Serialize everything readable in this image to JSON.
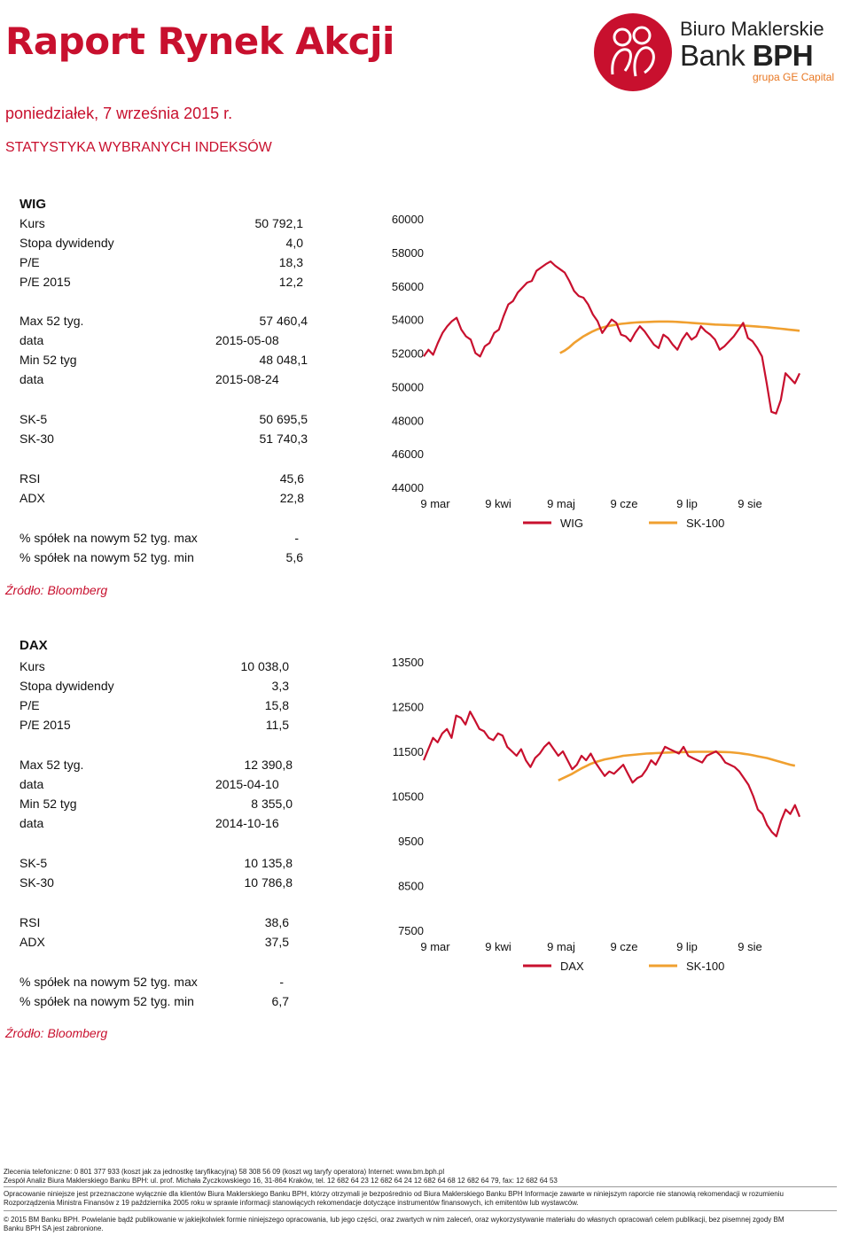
{
  "header": {
    "title": "Raport Rynek Akcji",
    "date": "poniedziałek, 7 września 2015 r.",
    "section": "STATYSTYKA WYBRANYCH INDEKSÓW"
  },
  "logo": {
    "line1": "Biuro Maklerskie",
    "line2a": "Bank ",
    "line2b": "BPH",
    "line3": "grupa GE Capital"
  },
  "colors": {
    "accent": "#c8102e",
    "series_index": "#c8102e",
    "series_sk100": "#f0a030"
  },
  "wig": {
    "name": "WIG",
    "kurs_label": "Kurs",
    "kurs": "50 792,1",
    "dyw_label": "Stopa dywidendy",
    "dyw": "4,0",
    "pe_label": "P/E",
    "pe": "18,3",
    "pe2015_label": "P/E 2015",
    "pe2015": "12,2",
    "max_label": "Max 52 tyg.",
    "max": "57 460,4",
    "max_date_label": "data",
    "max_date": "2015-05-08",
    "min_label": "Min 52 tyg",
    "min": "48 048,1",
    "min_date_label": "data",
    "min_date": "2015-08-24",
    "sk5_label": "SK-5",
    "sk5": "50 695,5",
    "sk30_label": "SK-30",
    "sk30": "51 740,3",
    "rsi_label": "RSI",
    "rsi": "45,6",
    "adx_label": "ADX",
    "adx": "22,8",
    "pmax_label": "% spółek na nowym 52 tyg. max",
    "pmax": "-",
    "pmin_label": "% spółek na nowym 52 tyg. min",
    "pmin": "5,6",
    "source": "Źródło: Bloomberg"
  },
  "dax": {
    "name": "DAX",
    "kurs_label": "Kurs",
    "kurs": "10 038,0",
    "dyw_label": "Stopa dywidendy",
    "dyw": "3,3",
    "pe_label": "P/E",
    "pe": "15,8",
    "pe2015_label": "P/E 2015",
    "pe2015": "11,5",
    "max_label": "Max 52 tyg.",
    "max": "12 390,8",
    "max_date_label": "data",
    "max_date": "2015-04-10",
    "min_label": "Min 52 tyg",
    "min": "8 355,0",
    "min_date_label": "data",
    "min_date": "2014-10-16",
    "sk5_label": "SK-5",
    "sk5": "10 135,8",
    "sk30_label": "SK-30",
    "sk30": "10 786,8",
    "rsi_label": "RSI",
    "rsi": "38,6",
    "adx_label": "ADX",
    "adx": "37,5",
    "pmax_label": "% spółek na nowym 52 tyg. max",
    "pmax": "-",
    "pmin_label": "% spółek na nowym 52 tyg. min",
    "pmin": "6,7",
    "source": "Źródło: Bloomberg"
  },
  "chart_data": [
    {
      "type": "line",
      "x_ticks": [
        "9 mar",
        "9 kwi",
        "9 maj",
        "9 cze",
        "9 lip",
        "9 sie"
      ],
      "y_ticks": [
        "60000",
        "58000",
        "56000",
        "54000",
        "52000",
        "50000",
        "48000",
        "46000",
        "44000"
      ],
      "ylim": [
        44000,
        60000
      ],
      "legend": "bottom",
      "series": [
        {
          "name": "WIG",
          "color": "#c8102e",
          "values": [
            51800,
            52200,
            51900,
            52600,
            53200,
            53600,
            53900,
            54100,
            53400,
            53000,
            52800,
            52000,
            51800,
            52400,
            52600,
            53200,
            53400,
            54200,
            54900,
            55100,
            55600,
            55900,
            56200,
            56300,
            56900,
            57100,
            57300,
            57460,
            57200,
            57000,
            56800,
            56300,
            55700,
            55400,
            55300,
            54900,
            54300,
            53900,
            53200,
            53600,
            54000,
            53800,
            53100,
            53000,
            52700,
            53200,
            53600,
            53300,
            52900,
            52500,
            52300,
            53100,
            52900,
            52500,
            52200,
            52800,
            53200,
            52800,
            53000,
            53600,
            53300,
            53100,
            52800,
            52200,
            52400,
            52700,
            53000,
            53400,
            53800,
            52900,
            52700,
            52300,
            51800,
            50200,
            48500,
            48400,
            49200,
            50800,
            50500,
            50200,
            50790
          ]
        },
        {
          "name": "SK-100",
          "color": "#f0a030",
          "values": [
            null,
            null,
            null,
            null,
            null,
            null,
            null,
            null,
            null,
            null,
            null,
            null,
            null,
            null,
            null,
            null,
            null,
            null,
            null,
            null,
            null,
            null,
            null,
            null,
            null,
            null,
            null,
            null,
            null,
            52000,
            52150,
            52350,
            52600,
            52800,
            53000,
            53150,
            53300,
            53420,
            53520,
            53600,
            53650,
            53700,
            53740,
            53770,
            53800,
            53820,
            53840,
            53850,
            53860,
            53870,
            53880,
            53880,
            53880,
            53870,
            53860,
            53840,
            53820,
            53800,
            53780,
            53760,
            53740,
            53720,
            53700,
            53690,
            53680,
            53670,
            53660,
            53650,
            53640,
            53620,
            53600,
            53580,
            53560,
            53540,
            53510,
            53480,
            53450,
            53420,
            53390,
            53360,
            53330
          ]
        }
      ]
    },
    {
      "type": "line",
      "x_ticks": [
        "9 mar",
        "9 kwi",
        "9 maj",
        "9 cze",
        "9 lip",
        "9 sie"
      ],
      "y_ticks": [
        "13500",
        "12500",
        "11500",
        "10500",
        "9500",
        "8500",
        "7500"
      ],
      "ylim": [
        7500,
        13500
      ],
      "legend": "bottom",
      "series": [
        {
          "name": "DAX",
          "color": "#c8102e",
          "values": [
            11300,
            11550,
            11800,
            11700,
            11900,
            12000,
            11800,
            12300,
            12250,
            12100,
            12390,
            12200,
            12000,
            11950,
            11800,
            11750,
            11900,
            11850,
            11600,
            11500,
            11400,
            11550,
            11300,
            11150,
            11350,
            11450,
            11600,
            11700,
            11550,
            11400,
            11500,
            11300,
            11100,
            11200,
            11400,
            11300,
            11450,
            11250,
            11100,
            10950,
            11050,
            11000,
            11100,
            11200,
            11000,
            10800,
            10900,
            10950,
            11100,
            11300,
            11200,
            11400,
            11600,
            11550,
            11500,
            11450,
            11600,
            11400,
            11350,
            11300,
            11250,
            11400,
            11450,
            11500,
            11400,
            11250,
            11200,
            11150,
            11050,
            10900,
            10750,
            10500,
            10200,
            10100,
            9850,
            9700,
            9600,
            9950,
            10200,
            10100,
            10300,
            10038
          ]
        },
        {
          "name": "SK-100",
          "color": "#f0a030",
          "values": [
            null,
            null,
            null,
            null,
            null,
            null,
            null,
            null,
            null,
            null,
            null,
            null,
            null,
            null,
            null,
            null,
            null,
            null,
            null,
            null,
            null,
            null,
            null,
            null,
            null,
            null,
            null,
            null,
            null,
            10850,
            10900,
            10950,
            11000,
            11060,
            11120,
            11170,
            11220,
            11260,
            11290,
            11320,
            11340,
            11360,
            11380,
            11400,
            11410,
            11420,
            11430,
            11440,
            11450,
            11455,
            11460,
            11465,
            11470,
            11475,
            11480,
            11482,
            11484,
            11486,
            11488,
            11490,
            11490,
            11490,
            11490,
            11488,
            11486,
            11484,
            11480,
            11470,
            11460,
            11445,
            11430,
            11410,
            11390,
            11370,
            11350,
            11320,
            11290,
            11260,
            11230,
            11200,
            11180
          ]
        }
      ]
    }
  ],
  "footer": {
    "l1": "Zlecenia telefoniczne: 0  801  377  933 (koszt jak za jednostkę taryfikacyjną)   58 308 56 09 (koszt wg taryfy operatora)   Internet: www.bm.bph.pl",
    "l2": "Zespół Analiz Biura Maklerskiego Banku BPH: ul. prof. Michała Życzkowskiego 16, 31-864 Kraków,  tel. 12 682 64 23    12 682 64 24   12  682 64 68   12 682 64 79,   fax: 12  682 64 53",
    "l3": "Opracowanie niniejsze jest przeznaczone wyłącznie dla klientów Biura Maklerskiego Banku BPH, którzy otrzymali je bezpośrednio od Biura Maklerskiego Banku BPH Informacje zawarte w niniejszym raporcie nie stanowią rekomendacji w rozumieniu",
    "l4": "Rozporządzenia Ministra Finansów z 19 października 2005 roku w sprawie informacji stanowiących rekomendacje dotyczące instrumentów finansowych, ich emitentów lub wystawców.",
    "l5": "© 2015 BM Banku BPH. Powielanie bądź publikowanie w jakiejkolwiek formie niniejszego opracowania, lub jego części, oraz zwartych w nim zaleceń, oraz wykorzystywanie materiału do własnych opracowań celem publikacji, bez pisemnej zgody BM",
    "l6": "Banku BPH SA jest zabronione."
  }
}
